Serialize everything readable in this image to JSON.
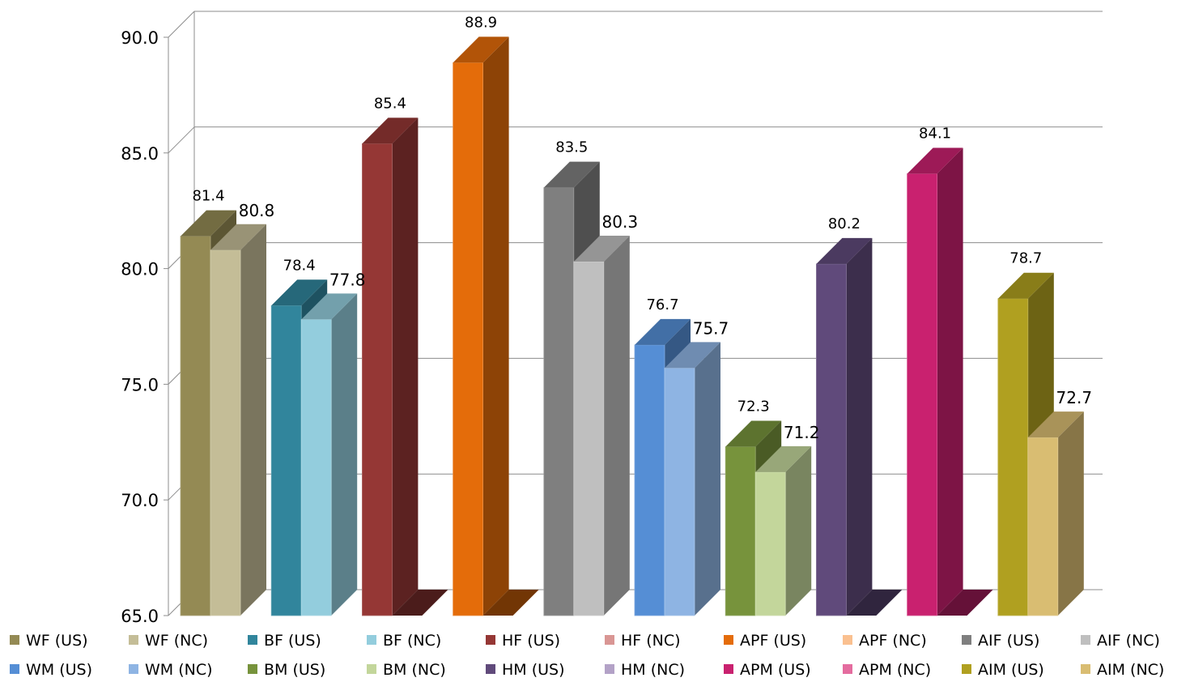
{
  "chart_data": {
    "type": "bar",
    "style": "3d-clustered-column",
    "ylim": [
      65,
      90
    ],
    "yticks": [
      "65.0",
      "70.0",
      "75.0",
      "80.0",
      "85.0",
      "90.0"
    ],
    "grid": true,
    "legend_position": "bottom",
    "groups": [
      {
        "bars": [
          {
            "series": "WF (US)",
            "value": 81.4,
            "label": "81.4"
          },
          {
            "series": "WF (NC)",
            "value": 80.8,
            "label": "80.8"
          }
        ]
      },
      {
        "bars": [
          {
            "series": "BF (US)",
            "value": 78.4,
            "label": "78.4"
          },
          {
            "series": "BF (NC)",
            "value": 77.8,
            "label": "77.8"
          }
        ]
      },
      {
        "bars": [
          {
            "series": "HF (US)",
            "value": 85.4,
            "label": "85.4"
          },
          {
            "series": "HF (NC)",
            "value": null,
            "label": ""
          }
        ]
      },
      {
        "bars": [
          {
            "series": "APF (US)",
            "value": 88.9,
            "label": "88.9"
          },
          {
            "series": "APF (NC)",
            "value": null,
            "label": ""
          }
        ]
      },
      {
        "bars": [
          {
            "series": "AIF (US)",
            "value": 83.5,
            "label": "83.5"
          },
          {
            "series": "AIF (NC)",
            "value": 80.3,
            "label": "80.3"
          }
        ]
      },
      {
        "bars": [
          {
            "series": "WM (US)",
            "value": 76.7,
            "label": "76.7"
          },
          {
            "series": "WM (NC)",
            "value": 75.7,
            "label": "75.7"
          }
        ]
      },
      {
        "bars": [
          {
            "series": "BM (US)",
            "value": 72.3,
            "label": "72.3"
          },
          {
            "series": "BM (NC)",
            "value": 71.2,
            "label": "71.2"
          }
        ]
      },
      {
        "bars": [
          {
            "series": "HM (US)",
            "value": 80.2,
            "label": "80.2"
          },
          {
            "series": "HM (NC)",
            "value": null,
            "label": ""
          }
        ]
      },
      {
        "bars": [
          {
            "series": "APM (US)",
            "value": 84.1,
            "label": "84.1"
          },
          {
            "series": "APM (NC)",
            "value": null,
            "label": ""
          }
        ]
      },
      {
        "bars": [
          {
            "series": "AIM (US)",
            "value": 78.7,
            "label": "78.7"
          },
          {
            "series": "AIM (NC)",
            "value": 72.7,
            "label": "72.7"
          }
        ]
      }
    ],
    "series": [
      {
        "name": "WF (US)",
        "color": "#948a54"
      },
      {
        "name": "WF (NC)",
        "color": "#c4bd97"
      },
      {
        "name": "BF (US)",
        "color": "#31859c"
      },
      {
        "name": "BF (NC)",
        "color": "#93cddd"
      },
      {
        "name": "HF (US)",
        "color": "#953735"
      },
      {
        "name": "HF (NC)",
        "color": "#d99694"
      },
      {
        "name": "APF (US)",
        "color": "#e46c0a"
      },
      {
        "name": "APF (NC)",
        "color": "#fac090"
      },
      {
        "name": "AIF (US)",
        "color": "#7f7f7f"
      },
      {
        "name": "AIF (NC)",
        "color": "#bfbfbf"
      },
      {
        "name": "WM (US)",
        "color": "#558ed5"
      },
      {
        "name": "WM (NC)",
        "color": "#8eb4e3"
      },
      {
        "name": "BM (US)",
        "color": "#77933c"
      },
      {
        "name": "BM (NC)",
        "color": "#c3d69b"
      },
      {
        "name": "HM (US)",
        "color": "#604a7b"
      },
      {
        "name": "HM (NC)",
        "color": "#b3a2c7"
      },
      {
        "name": "APM (US)",
        "color": "#c9216f"
      },
      {
        "name": "APM (NC)",
        "color": "#e46c9f"
      },
      {
        "name": "AIM (US)",
        "color": "#b0a020"
      },
      {
        "name": "AIM (NC)",
        "color": "#d9bd72"
      }
    ]
  }
}
